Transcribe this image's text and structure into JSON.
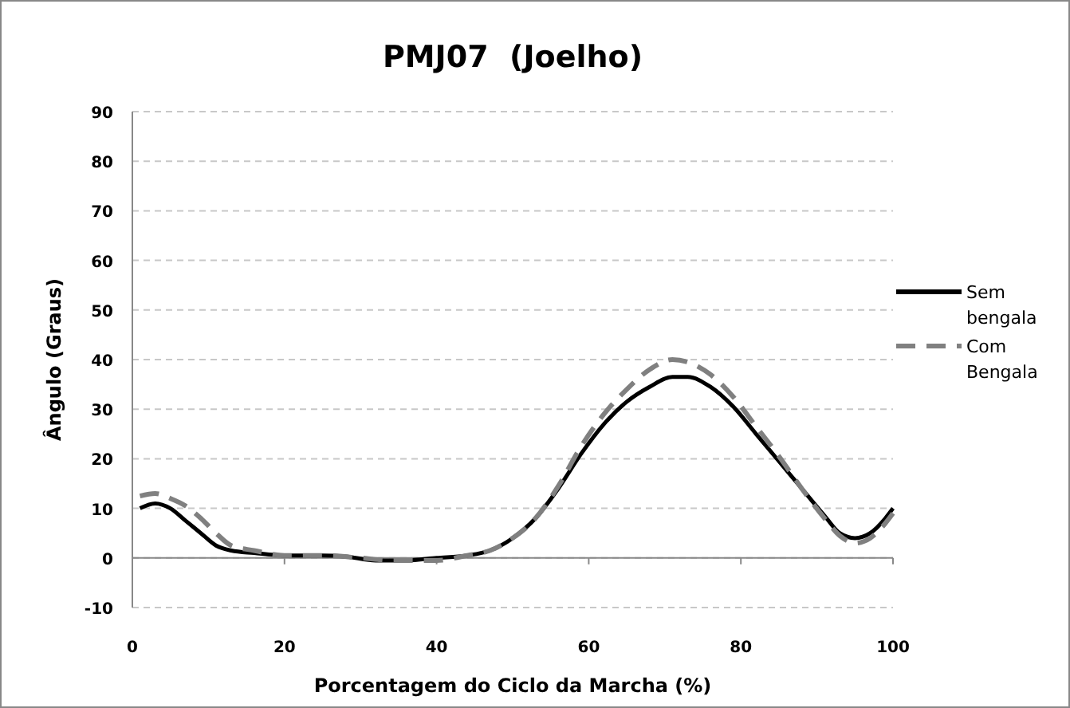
{
  "chart_data": {
    "type": "line",
    "title": "PMJ07  (Joelho)",
    "xlabel": "Porcentagem do Ciclo da Marcha (%)",
    "ylabel": "Ângulo (Graus)",
    "xlim": [
      0,
      100
    ],
    "xticks": [
      0,
      20,
      40,
      60,
      80,
      100
    ],
    "ylim": [
      -10,
      90
    ],
    "yticks": [
      -10,
      0,
      10,
      20,
      30,
      40,
      50,
      60,
      70,
      80,
      90
    ],
    "grid": "y",
    "legend": "right",
    "series": [
      {
        "name": "Sem bengala",
        "color": "#000000",
        "line_style": "solid",
        "x": [
          1,
          3,
          5,
          7,
          9,
          11,
          13,
          16,
          20,
          25,
          28,
          32,
          36,
          40,
          44,
          47,
          50,
          53,
          56,
          59,
          62,
          65,
          68,
          71,
          73,
          76,
          79,
          82,
          85,
          88,
          91,
          93,
          95,
          97,
          99,
          100
        ],
        "values": [
          10,
          11,
          10,
          7.5,
          5,
          2.5,
          1.5,
          1,
          0.5,
          0.5,
          0.3,
          -0.5,
          -0.5,
          0,
          0.5,
          1.5,
          4,
          8,
          14,
          21,
          27,
          31.5,
          34.5,
          36.5,
          36.5,
          34.5,
          30.5,
          25,
          19.5,
          14,
          8.5,
          5,
          4,
          5,
          8,
          10
        ]
      },
      {
        "name": "Com Bengala",
        "color": "#808080",
        "line_style": "dashed",
        "x": [
          1,
          3,
          5,
          7,
          9,
          11,
          13,
          16,
          20,
          25,
          30,
          34,
          38,
          40,
          44,
          47,
          50,
          53,
          56,
          59,
          62,
          65,
          68,
          71,
          73,
          76,
          79,
          82,
          85,
          88,
          91,
          93,
          95,
          97,
          99,
          100
        ],
        "values": [
          12.5,
          13,
          12,
          10.5,
          8,
          5,
          2.5,
          1.5,
          0.5,
          0.5,
          0,
          -0.5,
          -0.5,
          -0.5,
          0.5,
          1.5,
          4,
          8,
          14.5,
          22.5,
          29,
          34,
          38,
          40,
          39.5,
          37,
          32.5,
          26.5,
          20.5,
          14,
          8,
          4.5,
          3,
          4,
          7,
          9
        ]
      }
    ]
  }
}
